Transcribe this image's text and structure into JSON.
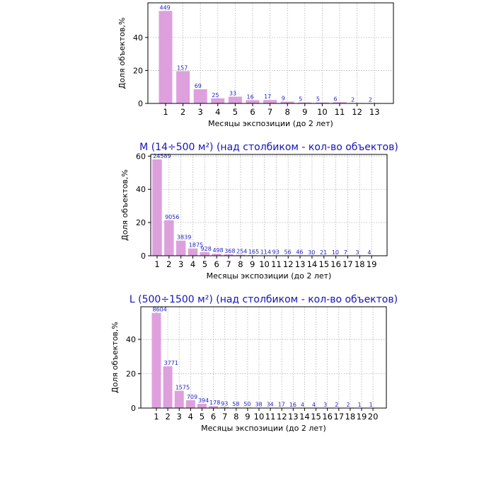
{
  "style": {
    "bar_color": "#dda0dd",
    "bar_edge": "#c77fd0",
    "label_color": "#1f1fbf",
    "title_color": "#1414b8",
    "grid_color": "#b0b0b0"
  },
  "chart_data": [
    {
      "type": "bar",
      "title": "",
      "xlabel": "Месяцы экспозиции (до 2 лет)",
      "ylabel": "Доля объектов,%",
      "categories": [
        "1",
        "2",
        "3",
        "4",
        "5",
        "6",
        "7",
        "8",
        "9",
        "10",
        "11",
        "12",
        "13"
      ],
      "values": [
        56.1,
        19.6,
        8.6,
        3.1,
        4.1,
        2.0,
        2.1,
        1.1,
        0.6,
        0.6,
        0.75,
        0.25,
        0.25
      ],
      "bar_labels": [
        "449",
        "157",
        "69",
        "25",
        "33",
        "16",
        "17",
        "9",
        "5",
        "5",
        "6",
        "2",
        "2"
      ],
      "yticks": [
        0,
        20,
        40
      ],
      "ylim": [
        0,
        61
      ],
      "grid": true
    },
    {
      "type": "bar",
      "title": "M (14÷500 м²) (над столбиком - кол-во объектов)",
      "xlabel": "Месяцы экспозиции (до 2 лет)",
      "ylabel": "Доля объектов,%",
      "categories": [
        "1",
        "2",
        "3",
        "4",
        "5",
        "6",
        "7",
        "8",
        "9",
        "10",
        "11",
        "12",
        "13",
        "14",
        "15",
        "16",
        "17",
        "18",
        "19"
      ],
      "values": [
        58.0,
        21.4,
        9.1,
        4.4,
        2.2,
        1.2,
        0.87,
        0.6,
        0.39,
        0.27,
        0.22,
        0.13,
        0.11,
        0.07,
        0.05,
        0.02,
        0.02,
        0.01,
        0.01
      ],
      "bar_labels": [
        "24589",
        "9056",
        "3839",
        "1875",
        "928",
        "498",
        "368",
        "254",
        "165",
        "114",
        "93",
        "56",
        "46",
        "30",
        "21",
        "10",
        "7",
        "3",
        "4"
      ],
      "yticks": [
        0,
        20,
        40,
        60
      ],
      "ylim": [
        0,
        61
      ],
      "grid": true
    },
    {
      "type": "bar",
      "title": "L (500÷1500 м²) (над столбиком - кол-во объектов)",
      "xlabel": "Месяцы экспозиции (до 2 лет)",
      "ylabel": "Доля объектов,%",
      "categories": [
        "1",
        "2",
        "3",
        "4",
        "5",
        "6",
        "7",
        "8",
        "9",
        "10",
        "11",
        "12",
        "13",
        "14",
        "15",
        "16",
        "17",
        "18",
        "19",
        "20"
      ],
      "values": [
        55.4,
        24.3,
        10.1,
        4.6,
        2.5,
        1.15,
        0.6,
        0.37,
        0.32,
        0.24,
        0.22,
        0.11,
        0.1,
        0.03,
        0.03,
        0.02,
        0.01,
        0.01,
        0.01,
        0.01
      ],
      "bar_labels": [
        "8604",
        "3771",
        "1575",
        "709",
        "394",
        "178",
        "93",
        "58",
        "50",
        "38",
        "34",
        "17",
        "16",
        "4",
        "4",
        "3",
        "2",
        "2",
        "1",
        "1"
      ],
      "yticks": [
        0,
        20,
        40
      ],
      "ylim": [
        0,
        59
      ],
      "grid": true
    }
  ]
}
